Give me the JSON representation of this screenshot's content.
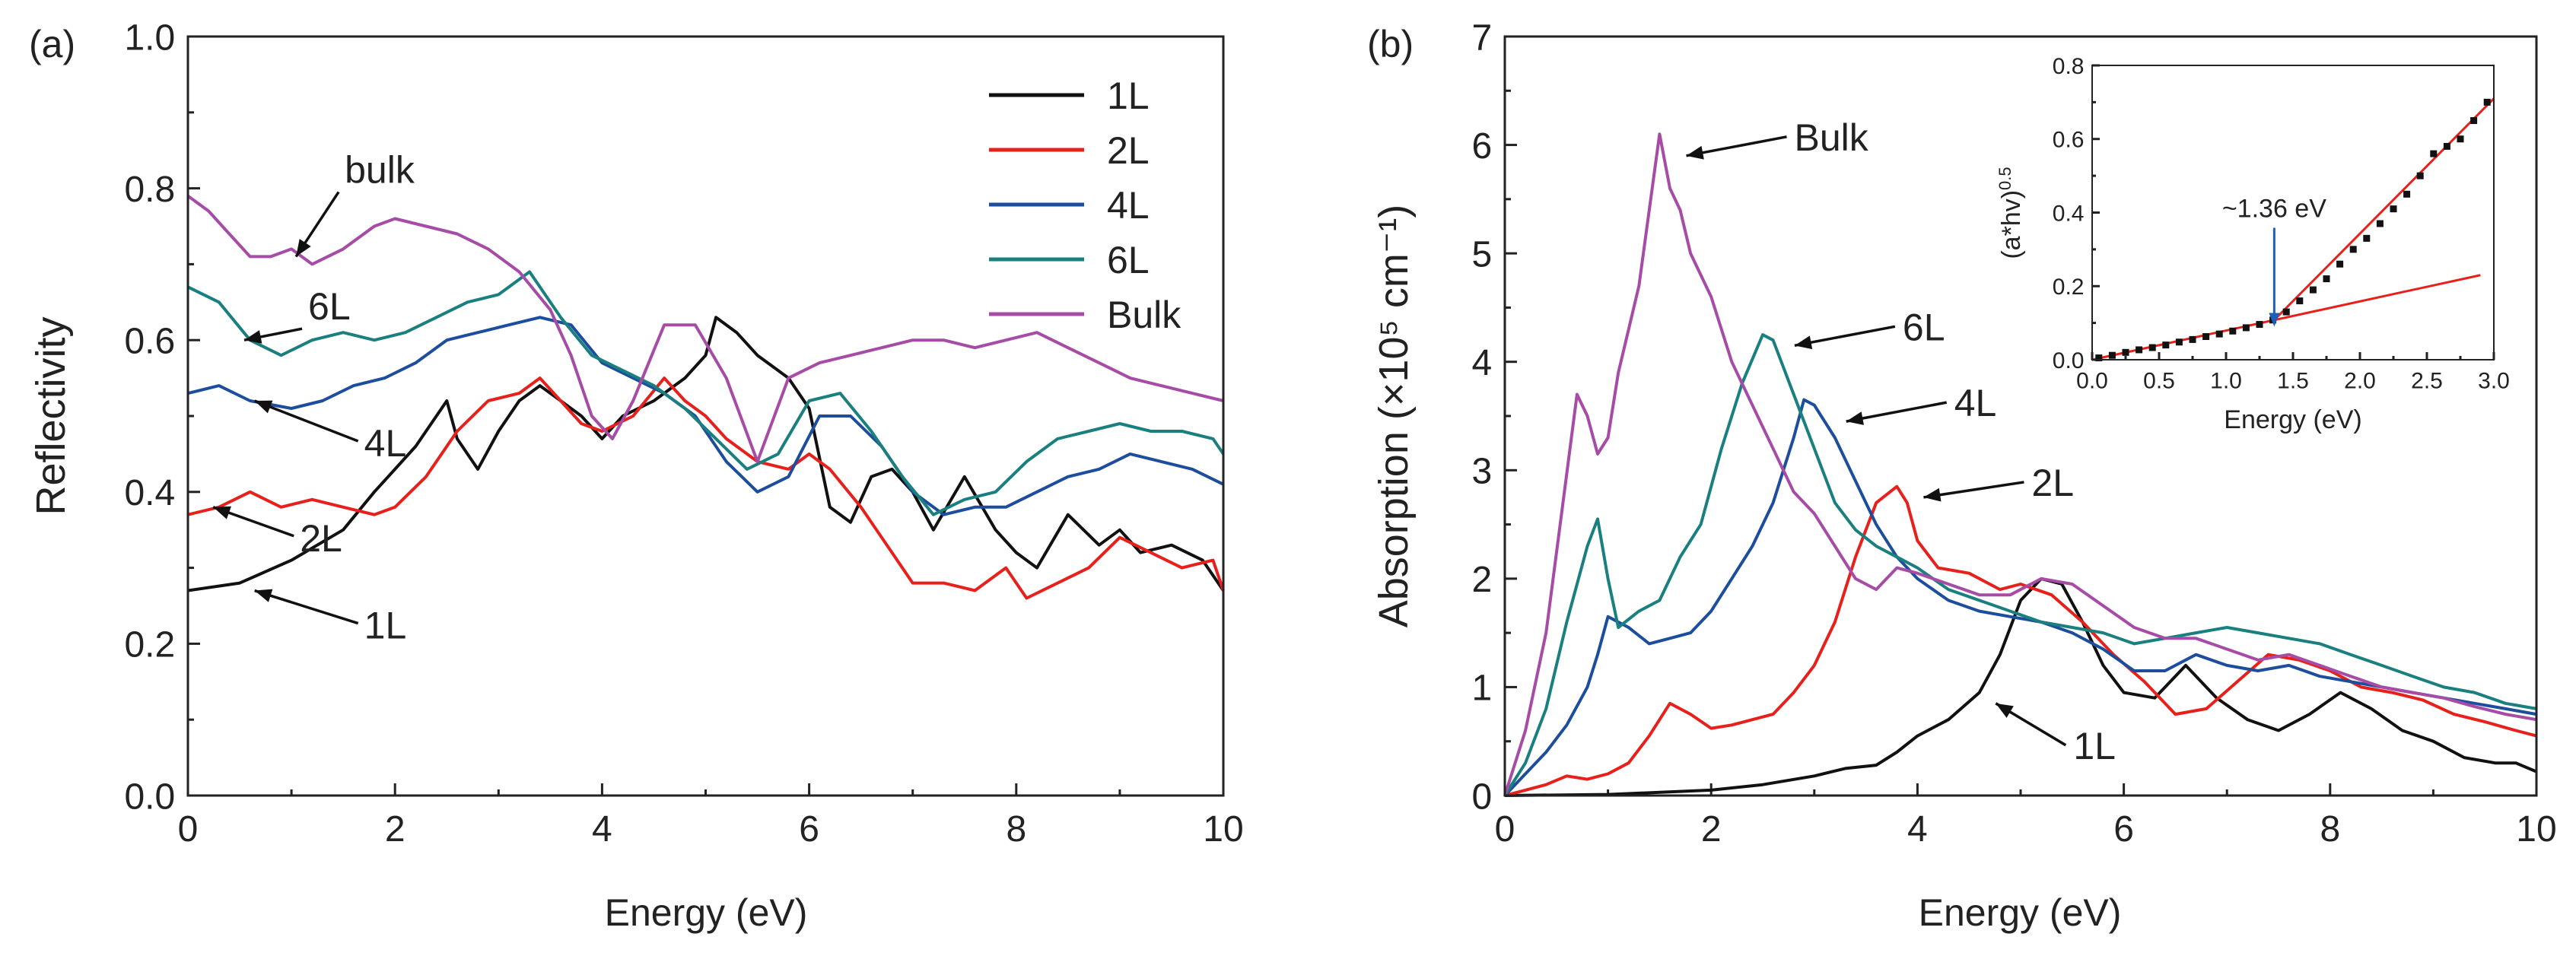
{
  "colors": {
    "1L": "#111111",
    "2L": "#e8201c",
    "4L": "#1d4e9e",
    "6L": "#1a7f7f",
    "Bulk": "#a64ca6",
    "inset_fit": "#e8201c",
    "inset_points": "#111111",
    "inset_arrow": "#1d5fb4"
  },
  "chart_data": [
    {
      "type": "line",
      "panel_label": "(a)",
      "xlabel": "Energy (eV)",
      "ylabel": "Reflectivity",
      "xlim": [
        0,
        10
      ],
      "ylim": [
        0,
        1
      ],
      "xticks": [
        "0",
        "2",
        "4",
        "6",
        "8",
        "10"
      ],
      "yticks": [
        "0.0",
        "0.2",
        "0.4",
        "0.6",
        "0.8",
        "1.0"
      ],
      "legend": {
        "placement": "top-right",
        "entries": [
          "1L",
          "2L",
          "4L",
          "6L",
          "Bulk"
        ]
      },
      "series": [
        {
          "name": "1L",
          "x": [
            0,
            0.5,
            1.0,
            1.5,
            1.8,
            2.0,
            2.2,
            2.5,
            2.6,
            2.8,
            3.0,
            3.2,
            3.4,
            3.6,
            3.8,
            4.0,
            4.2,
            4.5,
            4.8,
            5.0,
            5.1,
            5.3,
            5.5,
            5.8,
            6.0,
            6.2,
            6.4,
            6.6,
            6.8,
            7.0,
            7.2,
            7.5,
            7.8,
            8.0,
            8.2,
            8.5,
            8.8,
            9.0,
            9.2,
            9.5,
            9.8,
            10
          ],
          "y": [
            0.27,
            0.28,
            0.31,
            0.35,
            0.4,
            0.43,
            0.46,
            0.52,
            0.47,
            0.43,
            0.48,
            0.52,
            0.54,
            0.52,
            0.5,
            0.47,
            0.5,
            0.52,
            0.55,
            0.58,
            0.63,
            0.61,
            0.58,
            0.55,
            0.51,
            0.38,
            0.36,
            0.42,
            0.43,
            0.4,
            0.35,
            0.42,
            0.35,
            0.32,
            0.3,
            0.37,
            0.33,
            0.35,
            0.32,
            0.33,
            0.31,
            0.27
          ]
        },
        {
          "name": "2L",
          "x": [
            0,
            0.3,
            0.6,
            0.9,
            1.2,
            1.5,
            1.8,
            2.0,
            2.3,
            2.6,
            2.9,
            3.2,
            3.4,
            3.6,
            3.8,
            4.0,
            4.3,
            4.6,
            4.8,
            5.0,
            5.2,
            5.5,
            5.8,
            6.0,
            6.2,
            6.5,
            6.8,
            7.0,
            7.3,
            7.6,
            7.9,
            8.1,
            8.4,
            8.7,
            9.0,
            9.3,
            9.6,
            9.9,
            10
          ],
          "y": [
            0.37,
            0.38,
            0.4,
            0.38,
            0.39,
            0.38,
            0.37,
            0.38,
            0.42,
            0.48,
            0.52,
            0.53,
            0.55,
            0.52,
            0.49,
            0.48,
            0.5,
            0.55,
            0.52,
            0.5,
            0.47,
            0.44,
            0.43,
            0.45,
            0.43,
            0.38,
            0.32,
            0.28,
            0.28,
            0.27,
            0.3,
            0.26,
            0.28,
            0.3,
            0.34,
            0.32,
            0.3,
            0.31,
            0.27
          ]
        },
        {
          "name": "4L",
          "x": [
            0,
            0.3,
            0.6,
            1.0,
            1.3,
            1.6,
            1.9,
            2.2,
            2.5,
            2.8,
            3.1,
            3.4,
            3.7,
            4.0,
            4.3,
            4.6,
            4.9,
            5.2,
            5.5,
            5.8,
            6.1,
            6.4,
            6.7,
            7.0,
            7.3,
            7.6,
            7.9,
            8.2,
            8.5,
            8.8,
            9.1,
            9.4,
            9.7,
            10
          ],
          "y": [
            0.53,
            0.54,
            0.52,
            0.51,
            0.52,
            0.54,
            0.55,
            0.57,
            0.6,
            0.61,
            0.62,
            0.63,
            0.62,
            0.57,
            0.55,
            0.53,
            0.5,
            0.44,
            0.4,
            0.42,
            0.5,
            0.5,
            0.46,
            0.4,
            0.37,
            0.38,
            0.38,
            0.4,
            0.42,
            0.43,
            0.45,
            0.44,
            0.43,
            0.41
          ]
        },
        {
          "name": "6L",
          "x": [
            0,
            0.3,
            0.6,
            0.9,
            1.2,
            1.5,
            1.8,
            2.1,
            2.4,
            2.7,
            3.0,
            3.3,
            3.6,
            3.9,
            4.2,
            4.5,
            4.8,
            5.1,
            5.4,
            5.7,
            6.0,
            6.3,
            6.6,
            6.9,
            7.2,
            7.5,
            7.8,
            8.1,
            8.4,
            8.7,
            9.0,
            9.3,
            9.6,
            9.9,
            10
          ],
          "y": [
            0.67,
            0.65,
            0.6,
            0.58,
            0.6,
            0.61,
            0.6,
            0.61,
            0.63,
            0.65,
            0.66,
            0.69,
            0.63,
            0.58,
            0.56,
            0.54,
            0.51,
            0.47,
            0.43,
            0.45,
            0.52,
            0.53,
            0.48,
            0.42,
            0.37,
            0.39,
            0.4,
            0.44,
            0.47,
            0.48,
            0.49,
            0.48,
            0.48,
            0.47,
            0.45
          ]
        },
        {
          "name": "Bulk",
          "x": [
            0,
            0.2,
            0.4,
            0.6,
            0.8,
            1.0,
            1.2,
            1.5,
            1.8,
            2.0,
            2.3,
            2.6,
            2.9,
            3.2,
            3.5,
            3.7,
            3.9,
            4.1,
            4.3,
            4.6,
            4.9,
            5.2,
            5.5,
            5.8,
            6.1,
            6.4,
            6.7,
            7.0,
            7.3,
            7.6,
            7.9,
            8.2,
            8.5,
            8.8,
            9.1,
            9.4,
            9.7,
            10
          ],
          "y": [
            0.79,
            0.77,
            0.74,
            0.71,
            0.71,
            0.72,
            0.7,
            0.72,
            0.75,
            0.76,
            0.75,
            0.74,
            0.72,
            0.69,
            0.64,
            0.58,
            0.5,
            0.47,
            0.52,
            0.62,
            0.62,
            0.55,
            0.44,
            0.55,
            0.57,
            0.58,
            0.59,
            0.6,
            0.6,
            0.59,
            0.6,
            0.61,
            0.59,
            0.57,
            0.55,
            0.54,
            0.53,
            0.52
          ]
        }
      ],
      "annotations": [
        {
          "text": "bulk",
          "x_data": 1.0,
          "y_data": 0.71
        },
        {
          "text": "6L",
          "x_data": 0.5,
          "y_data": 0.6
        },
        {
          "text": "4L",
          "x_data": 0.6,
          "y_data": 0.52
        },
        {
          "text": "2L",
          "x_data": 0.2,
          "y_data": 0.38
        },
        {
          "text": "1L",
          "x_data": 0.6,
          "y_data": 0.27
        }
      ]
    },
    {
      "type": "line",
      "panel_label": "(b)",
      "xlabel": "Energy (eV)",
      "ylabel": "Absorption (×10⁵ cm⁻¹)",
      "xlim": [
        0,
        10
      ],
      "ylim": [
        0,
        7
      ],
      "xticks": [
        "0",
        "2",
        "4",
        "6",
        "8",
        "10"
      ],
      "yticks": [
        "0",
        "1",
        "2",
        "3",
        "4",
        "5",
        "6",
        "7"
      ],
      "series": [
        {
          "name": "1L",
          "x": [
            0,
            1.0,
            2.0,
            2.5,
            3.0,
            3.3,
            3.6,
            3.8,
            4.0,
            4.3,
            4.6,
            4.8,
            5.0,
            5.2,
            5.4,
            5.6,
            5.8,
            6.0,
            6.3,
            6.6,
            6.9,
            7.2,
            7.5,
            7.8,
            8.1,
            8.4,
            8.7,
            9.0,
            9.3,
            9.6,
            9.8,
            10
          ],
          "y": [
            0,
            0.01,
            0.05,
            0.1,
            0.18,
            0.25,
            0.28,
            0.4,
            0.55,
            0.7,
            0.95,
            1.3,
            1.8,
            2.0,
            1.95,
            1.6,
            1.2,
            0.95,
            0.9,
            1.2,
            0.9,
            0.7,
            0.6,
            0.75,
            0.95,
            0.8,
            0.6,
            0.5,
            0.35,
            0.3,
            0.3,
            0.22
          ]
        },
        {
          "name": "2L",
          "x": [
            0,
            0.2,
            0.4,
            0.6,
            0.8,
            1.0,
            1.2,
            1.4,
            1.6,
            1.8,
            2.0,
            2.2,
            2.4,
            2.6,
            2.8,
            3.0,
            3.2,
            3.4,
            3.6,
            3.8,
            3.9,
            4.0,
            4.2,
            4.5,
            4.8,
            5.0,
            5.3,
            5.6,
            5.9,
            6.2,
            6.5,
            6.8,
            7.1,
            7.4,
            7.7,
            8.0,
            8.3,
            8.6,
            8.9,
            9.2,
            9.5,
            9.8,
            10
          ],
          "y": [
            0,
            0.05,
            0.1,
            0.18,
            0.15,
            0.2,
            0.3,
            0.55,
            0.85,
            0.75,
            0.62,
            0.65,
            0.7,
            0.75,
            0.95,
            1.2,
            1.6,
            2.2,
            2.7,
            2.85,
            2.7,
            2.35,
            2.1,
            2.05,
            1.9,
            1.95,
            1.85,
            1.6,
            1.3,
            1.05,
            0.75,
            0.8,
            1.05,
            1.3,
            1.25,
            1.15,
            1.0,
            0.95,
            0.88,
            0.75,
            0.68,
            0.6,
            0.55
          ]
        },
        {
          "name": "4L",
          "x": [
            0,
            0.2,
            0.4,
            0.6,
            0.8,
            0.9,
            1.0,
            1.2,
            1.4,
            1.6,
            1.8,
            2.0,
            2.2,
            2.4,
            2.6,
            2.8,
            2.9,
            3.0,
            3.2,
            3.4,
            3.6,
            3.8,
            4.0,
            4.3,
            4.6,
            4.9,
            5.2,
            5.5,
            5.8,
            6.1,
            6.4,
            6.7,
            7.0,
            7.3,
            7.6,
            7.9,
            8.2,
            8.5,
            8.8,
            9.1,
            9.4,
            9.7,
            10
          ],
          "y": [
            0,
            0.2,
            0.4,
            0.65,
            1.0,
            1.3,
            1.65,
            1.55,
            1.4,
            1.45,
            1.5,
            1.7,
            2.0,
            2.3,
            2.7,
            3.3,
            3.65,
            3.6,
            3.3,
            2.9,
            2.5,
            2.2,
            2.0,
            1.8,
            1.7,
            1.65,
            1.6,
            1.5,
            1.35,
            1.15,
            1.15,
            1.3,
            1.2,
            1.15,
            1.2,
            1.1,
            1.05,
            1.0,
            0.95,
            0.9,
            0.85,
            0.8,
            0.75
          ]
        },
        {
          "name": "6L",
          "x": [
            0,
            0.2,
            0.4,
            0.6,
            0.8,
            0.9,
            1.0,
            1.1,
            1.3,
            1.5,
            1.7,
            1.9,
            2.1,
            2.3,
            2.5,
            2.6,
            2.8,
            3.0,
            3.2,
            3.4,
            3.6,
            3.8,
            4.0,
            4.3,
            4.6,
            4.9,
            5.2,
            5.5,
            5.8,
            6.1,
            6.4,
            6.7,
            7.0,
            7.3,
            7.6,
            7.9,
            8.2,
            8.5,
            8.8,
            9.1,
            9.4,
            9.7,
            10
          ],
          "y": [
            0,
            0.3,
            0.8,
            1.6,
            2.3,
            2.55,
            2.0,
            1.55,
            1.7,
            1.8,
            2.2,
            2.5,
            3.2,
            3.8,
            4.25,
            4.2,
            3.7,
            3.2,
            2.7,
            2.45,
            2.3,
            2.2,
            2.1,
            1.9,
            1.8,
            1.7,
            1.6,
            1.55,
            1.5,
            1.4,
            1.45,
            1.5,
            1.55,
            1.5,
            1.45,
            1.4,
            1.3,
            1.2,
            1.1,
            1.0,
            0.95,
            0.85,
            0.8
          ]
        },
        {
          "name": "Bulk",
          "x": [
            0,
            0.2,
            0.4,
            0.55,
            0.7,
            0.8,
            0.9,
            1.0,
            1.1,
            1.3,
            1.5,
            1.6,
            1.7,
            1.8,
            2.0,
            2.2,
            2.4,
            2.6,
            2.8,
            3.0,
            3.2,
            3.4,
            3.6,
            3.8,
            4.0,
            4.3,
            4.6,
            4.9,
            5.2,
            5.5,
            5.8,
            6.1,
            6.4,
            6.7,
            7.0,
            7.3,
            7.6,
            7.9,
            8.2,
            8.5,
            8.8,
            9.1,
            9.4,
            9.7,
            10
          ],
          "y": [
            0,
            0.6,
            1.5,
            2.6,
            3.7,
            3.5,
            3.15,
            3.3,
            3.9,
            4.7,
            6.1,
            5.6,
            5.4,
            5.0,
            4.6,
            4.0,
            3.6,
            3.2,
            2.8,
            2.6,
            2.3,
            2.0,
            1.9,
            2.1,
            2.05,
            1.95,
            1.85,
            1.85,
            2.0,
            1.95,
            1.75,
            1.55,
            1.45,
            1.45,
            1.35,
            1.25,
            1.3,
            1.2,
            1.1,
            1.0,
            0.95,
            0.9,
            0.82,
            0.75,
            0.7
          ]
        }
      ],
      "annotations": [
        {
          "text": "Bulk",
          "x_data": 1.7,
          "y_data": 5.9
        },
        {
          "text": "6L",
          "x_data": 2.75,
          "y_data": 4.15
        },
        {
          "text": "4L",
          "x_data": 3.25,
          "y_data": 3.45
        },
        {
          "text": "2L",
          "x_data": 4.0,
          "y_data": 2.75
        },
        {
          "text": "1L",
          "x_data": 4.7,
          "y_data": 0.85
        }
      ],
      "inset": {
        "type": "scatter",
        "xlabel": "Energy (eV)",
        "ylabel": "(a*hv)0.5",
        "ylabel_base": "(a*hv)",
        "ylabel_exp": "0.5",
        "xlim": [
          0,
          3
        ],
        "ylim": [
          0,
          0.8
        ],
        "xticks": [
          "0.0",
          "0.5",
          "1.0",
          "1.5",
          "2.0",
          "2.5",
          "3.0"
        ],
        "yticks": [
          "0.0",
          "0.2",
          "0.4",
          "0.6",
          "0.8"
        ],
        "points_x": [
          0.05,
          0.15,
          0.25,
          0.35,
          0.45,
          0.55,
          0.65,
          0.75,
          0.85,
          0.95,
          1.05,
          1.15,
          1.25,
          1.35,
          1.45,
          1.55,
          1.65,
          1.75,
          1.85,
          1.95,
          2.05,
          2.15,
          2.25,
          2.35,
          2.45,
          2.55,
          2.65,
          2.75,
          2.85,
          2.95
        ],
        "points_y": [
          0.005,
          0.012,
          0.02,
          0.027,
          0.033,
          0.04,
          0.048,
          0.055,
          0.063,
          0.07,
          0.078,
          0.087,
          0.096,
          0.108,
          0.13,
          0.16,
          0.19,
          0.22,
          0.26,
          0.3,
          0.33,
          0.37,
          0.41,
          0.45,
          0.5,
          0.56,
          0.58,
          0.6,
          0.65,
          0.7
        ],
        "fit_lines": [
          {
            "x": [
              0.0,
              2.9
            ],
            "y": [
              0.0,
              0.23
            ]
          },
          {
            "x": [
              1.36,
              3.0
            ],
            "y": [
              0.108,
              0.71
            ]
          }
        ],
        "annotation": {
          "text": "~1.36 eV",
          "x_data": 1.36,
          "y_data": 0.4
        }
      }
    }
  ]
}
